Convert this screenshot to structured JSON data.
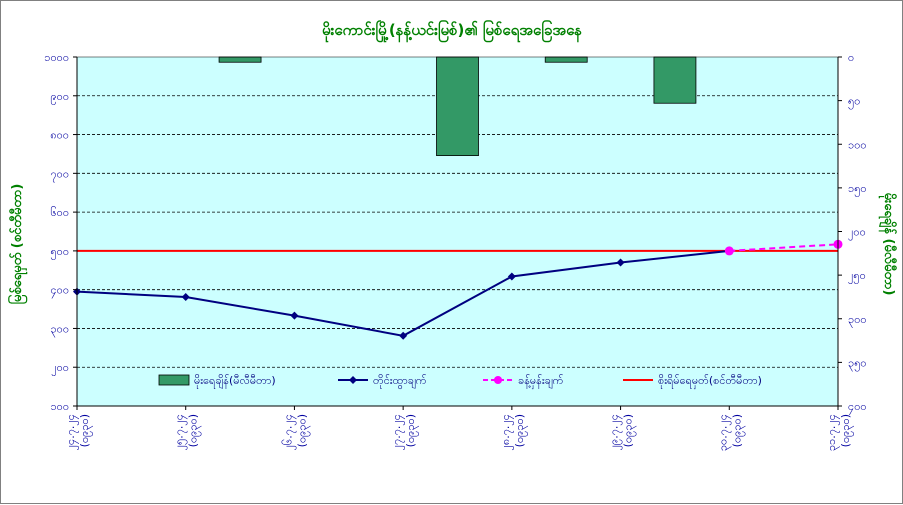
{
  "chart_data": {
    "type": "combo",
    "title": "မိုးကောင်းမြို့(နန့်ယင်းမြစ်)၏ မြစ်ရေအခြေအနေ",
    "ylabel_left": "မြစ်ရေမှတ် (စင်တီမီတာ)",
    "ylabel_right": "မိုးရေချိန် (မီလီမီတာ)",
    "ylim_left": [
      100,
      1000
    ],
    "ylim_right_inverted": [
      0,
      400
    ],
    "yticks_left": [
      "၁၀၀၀",
      "၉၀၀",
      "၈၀၀",
      "၇၀၀",
      "၆၀၀",
      "၅၀၀",
      "၄၀၀",
      "၃၀၀",
      "၂၀၀",
      "၁၀၀"
    ],
    "yticks_right": [
      "၀",
      "၅၀",
      "၁၀၀",
      "၁၅၀",
      "၂၀၀",
      "၂၅၀",
      "၃၀၀",
      "၃၅၀",
      "၄၀၀"
    ],
    "categories": [
      [
        "၂၄.၇.၂၄",
        "(၀၉၃၀)"
      ],
      [
        "၂၅.၇.၂၄",
        "(၀၉၃၀)"
      ],
      [
        "၂၆.၇.၂၄",
        "(၀၉၃၀)"
      ],
      [
        "၂၇.၇.၂၄",
        "(၀၉၃၀)"
      ],
      [
        "၂၈.၇.၂၄",
        "(၀၉၃၀)"
      ],
      [
        "၂၉.၇.၂၄",
        "(၀၉၃၀)"
      ],
      [
        "၃၀.၇.၂၄",
        "(၀၉၃၀)"
      ],
      [
        "၃၁.၇.၂၄",
        "(၀၉၃၀)"
      ]
    ],
    "series": [
      {
        "name": "မိုးရေချိန်(မီလီမီတာ)",
        "kind": "bar",
        "axis": "right",
        "color": "#339966",
        "values": [
          null,
          6,
          null,
          113,
          6,
          53,
          null,
          null
        ]
      },
      {
        "name": "တိုင်းထွာချက်",
        "kind": "line",
        "axis": "left",
        "color": "#000080",
        "values": [
          395,
          381,
          333,
          281,
          434,
          470,
          500,
          null
        ]
      },
      {
        "name": "ခန့်မှန်းချက်",
        "kind": "line-dashed",
        "axis": "left",
        "color": "#ff00ff",
        "values": [
          null,
          null,
          null,
          null,
          null,
          null,
          500,
          517
        ]
      },
      {
        "name": "စိုးရိမ်ရေမှတ်(စင်တီမီတာ)",
        "kind": "reference",
        "axis": "left",
        "color": "#ff0000",
        "value": 500
      }
    ],
    "grid": true,
    "plot_background": "#ccffff",
    "legend_position": "bottom-inside"
  }
}
